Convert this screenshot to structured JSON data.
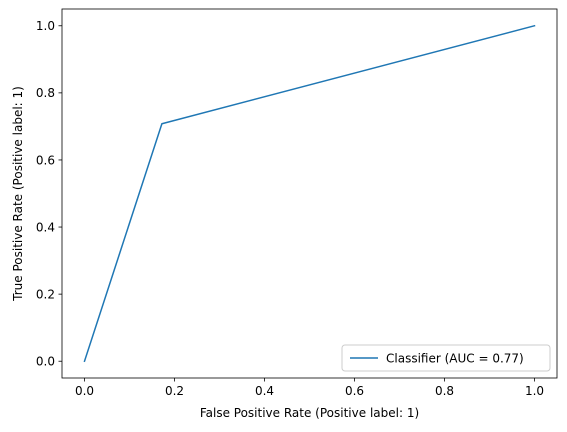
{
  "chart_data": {
    "type": "line",
    "title": "",
    "xlabel": "False Positive Rate (Positive label: 1)",
    "ylabel": "True Positive Rate (Positive label: 1)",
    "xlim": [
      -0.05,
      1.05
    ],
    "ylim": [
      -0.05,
      1.05
    ],
    "xticks": [
      0.0,
      0.2,
      0.4,
      0.6,
      0.8,
      1.0
    ],
    "yticks": [
      0.0,
      0.2,
      0.4,
      0.6,
      0.8,
      1.0
    ],
    "xtick_labels": [
      "0.0",
      "0.2",
      "0.4",
      "0.6",
      "0.8",
      "1.0"
    ],
    "ytick_labels": [
      "0.0",
      "0.2",
      "0.4",
      "0.6",
      "0.8",
      "1.0"
    ],
    "grid": false,
    "legend_position": "bottom-right",
    "series": [
      {
        "name": "Classifier (AUC = 0.77)",
        "color": "#1f77b4",
        "x": [
          0.0,
          0.172,
          1.0
        ],
        "y": [
          0.0,
          0.708,
          1.0
        ]
      }
    ]
  }
}
